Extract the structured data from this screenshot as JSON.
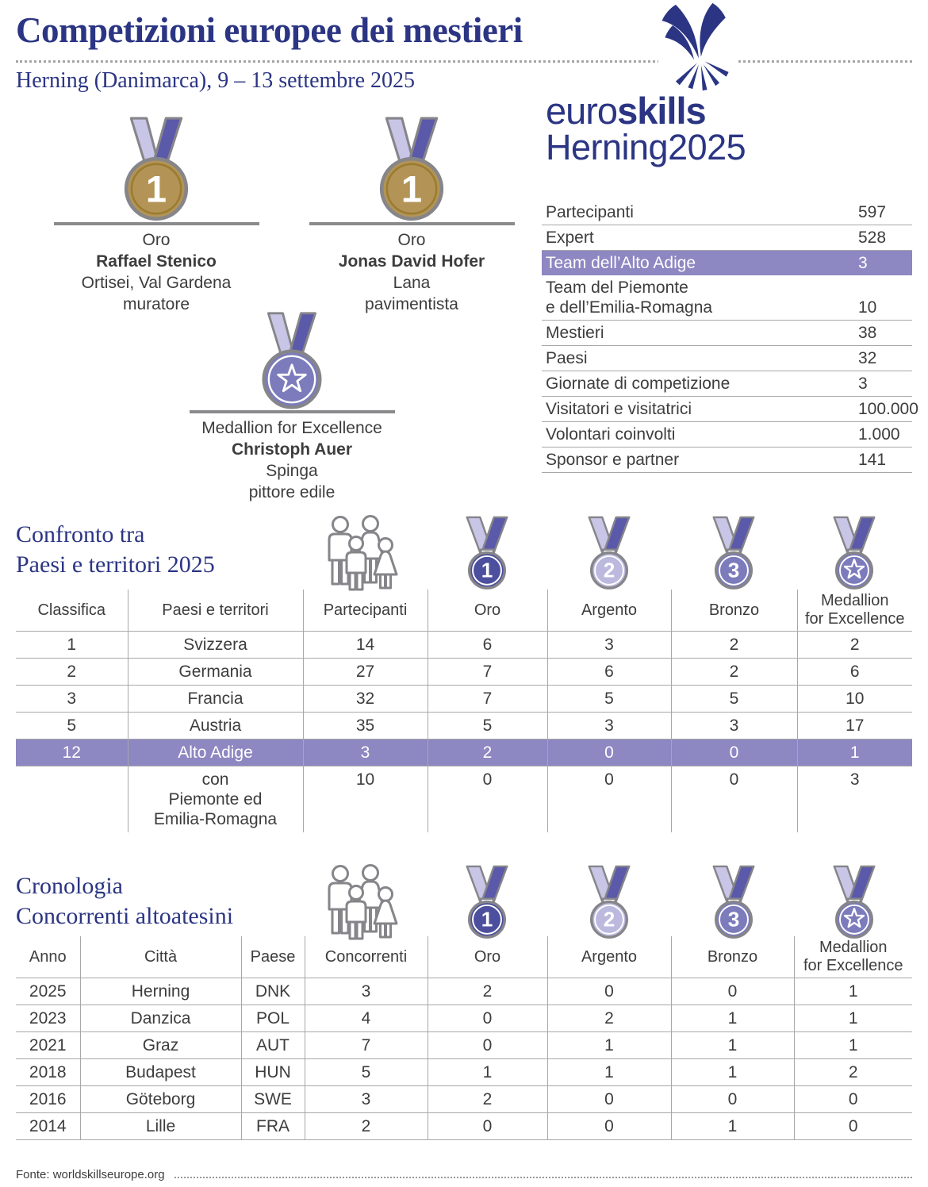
{
  "colors": {
    "navy": "#2b3583",
    "text": "#3d3d3d",
    "highlight_bg": "#8d87c2",
    "gold": "#b39456",
    "gold_ring": "#9a7c31",
    "medal_dark": "#4c4f9d",
    "medal_light": "#bbb9de",
    "medal_medium": "#7c7bbc",
    "ribbon_light": "#c8c5e6",
    "ribbon_dark": "#5b59a9",
    "outline_gray": "#85858a"
  },
  "header": {
    "title": "Competizioni europee dei mestieri",
    "subtitle": "Herning (Danimarca), 9 – 13 settembre 2025",
    "logo": {
      "word_regular": "euro",
      "word_bold": "skills",
      "event": "Herning2025"
    }
  },
  "winners": [
    {
      "medal_label": "Oro",
      "name": "Raffael Stenico",
      "place": "Ortisei, Val Gardena",
      "profession": "muratore"
    },
    {
      "medal_label": "Oro",
      "name": "Jonas David Hofer",
      "place": "Lana",
      "profession": "pavimentista"
    },
    {
      "medal_label": "Medallion for Excellence",
      "name": "Christoph Auer",
      "place": "Spinga",
      "profession": "pittore edile"
    }
  ],
  "stats": {
    "rows": [
      {
        "label": "Partecipanti",
        "value": "597"
      },
      {
        "label": "Expert",
        "value": "528"
      },
      {
        "label": "Team dell’Alto Adige",
        "value": "3"
      },
      {
        "label": "Team del Piemonte\ne dell’Emilia-Romagna",
        "value": "10"
      },
      {
        "label": "Mestieri",
        "value": "38"
      },
      {
        "label": "Paesi",
        "value": "32"
      },
      {
        "label": "Giornate di competizione",
        "value": "3"
      },
      {
        "label": "Visitatori e visitatrici",
        "value": "100.000"
      },
      {
        "label": "Volontari coinvolti",
        "value": "1.000"
      },
      {
        "label": "Sponsor e partner",
        "value": "141"
      }
    ]
  },
  "icons": {
    "first_place": "1",
    "second_place": "2",
    "third_place": "3"
  },
  "comparison": {
    "title_line1": "Confronto tra",
    "title_line2": "Paesi e territori 2025",
    "columns": [
      "Classifica",
      "Paesi e territori",
      "Partecipanti",
      "Oro",
      "Argento",
      "Bronzo",
      "Medallion\nfor Excellence"
    ],
    "rows": [
      [
        "1",
        "Svizzera",
        "14",
        "6",
        "3",
        "2",
        "2"
      ],
      [
        "2",
        "Germania",
        "27",
        "7",
        "6",
        "2",
        "6"
      ],
      [
        "3",
        "Francia",
        "32",
        "7",
        "5",
        "5",
        "10"
      ],
      [
        "5",
        "Austria",
        "35",
        "5",
        "3",
        "3",
        "17"
      ],
      [
        "12",
        "Alto Adige",
        "3",
        "2",
        "0",
        "0",
        "1"
      ],
      [
        "",
        "con\nPiemonte ed\nEmilia-Romagna",
        "10",
        "0",
        "0",
        "0",
        "3"
      ]
    ]
  },
  "chronology": {
    "title_line1": "Cronologia",
    "title_line2": "Concorrenti altoatesini",
    "columns": [
      "Anno",
      "Città",
      "Paese",
      "Concorrenti",
      "Oro",
      "Argento",
      "Bronzo",
      "Medallion\nfor Excellence"
    ],
    "rows": [
      [
        "2025",
        "Herning",
        "DNK",
        "3",
        "2",
        "0",
        "0",
        "1"
      ],
      [
        "2023",
        "Danzica",
        "POL",
        "4",
        "0",
        "2",
        "1",
        "1"
      ],
      [
        "2021",
        "Graz",
        "AUT",
        "7",
        "0",
        "1",
        "1",
        "1"
      ],
      [
        "2018",
        "Budapest",
        "HUN",
        "5",
        "1",
        "1",
        "1",
        "2"
      ],
      [
        "2016",
        "Göteborg",
        "SWE",
        "3",
        "2",
        "0",
        "0",
        "0"
      ],
      [
        "2014",
        "Lille",
        "FRA",
        "2",
        "0",
        "0",
        "1",
        "0"
      ]
    ]
  },
  "footer": {
    "source": "Fonte: worldskillseurope.org"
  }
}
